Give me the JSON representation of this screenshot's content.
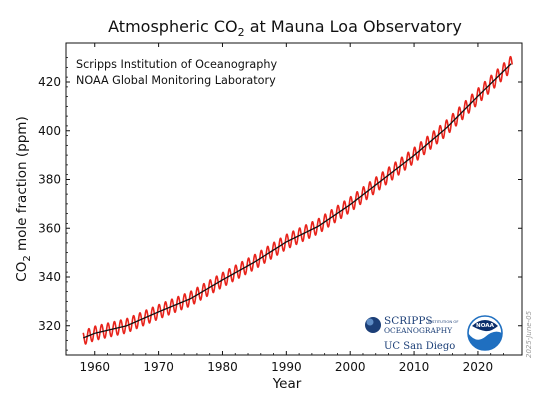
{
  "chart_data": {
    "type": "line",
    "title": "Atmospheric CO",
    "title_sub": "2",
    "title_suffix": " at Mauna Loa Observatory",
    "xlabel": "Year",
    "ylabel_pre": "CO",
    "ylabel_sub": "2",
    "ylabel_post": " mole fraction (ppm)",
    "xlim": [
      1955.5,
      2026.9
    ],
    "ylim": [
      308,
      436
    ],
    "x_ticks": [
      1960,
      1970,
      1980,
      1990,
      2000,
      2010,
      2020
    ],
    "y_ticks": [
      320,
      340,
      360,
      380,
      400,
      420
    ],
    "grid": false,
    "colors": {
      "monthly": "#e8231b",
      "trend": "#111111"
    },
    "series": [
      {
        "role": "monthly",
        "seasonal_amplitude_ppm": 3.2,
        "x": [
          1958.2,
          1960,
          1965,
          1970,
          1975,
          1980,
          1985,
          1990,
          1995,
          2000,
          2005,
          2010,
          2015,
          2020,
          2025.4
        ],
        "y": [
          315.0,
          316.9,
          320.0,
          325.7,
          331.1,
          338.8,
          346.1,
          354.4,
          360.8,
          369.7,
          379.8,
          389.9,
          401.0,
          414.2,
          428.0
        ]
      },
      {
        "role": "trend",
        "x": [
          1958.2,
          1960,
          1965,
          1970,
          1975,
          1980,
          1985,
          1990,
          1995,
          2000,
          2005,
          2010,
          2015,
          2020,
          2025.4
        ],
        "y": [
          315.0,
          316.9,
          320.0,
          325.7,
          331.1,
          338.8,
          346.1,
          354.4,
          360.8,
          369.7,
          379.8,
          389.9,
          401.0,
          414.2,
          428.0
        ]
      }
    ],
    "annotations": [
      "Scripps Institution of Oceanography",
      "NOAA Global Monitoring Laboratory"
    ],
    "datestamp": "2025-June-05"
  },
  "logos": {
    "scripps_main": "SCRIPPS",
    "scripps_small": "INSTITUTION OF",
    "scripps_second": "OCEANOGRAPHY",
    "ucsd": "UC San Diego",
    "noaa": "NOAA",
    "colors": {
      "scripps_blue": "#1c3f77",
      "noaa_blue": "#1f6fc0",
      "noaa_dark": "#0b2e6b"
    }
  }
}
